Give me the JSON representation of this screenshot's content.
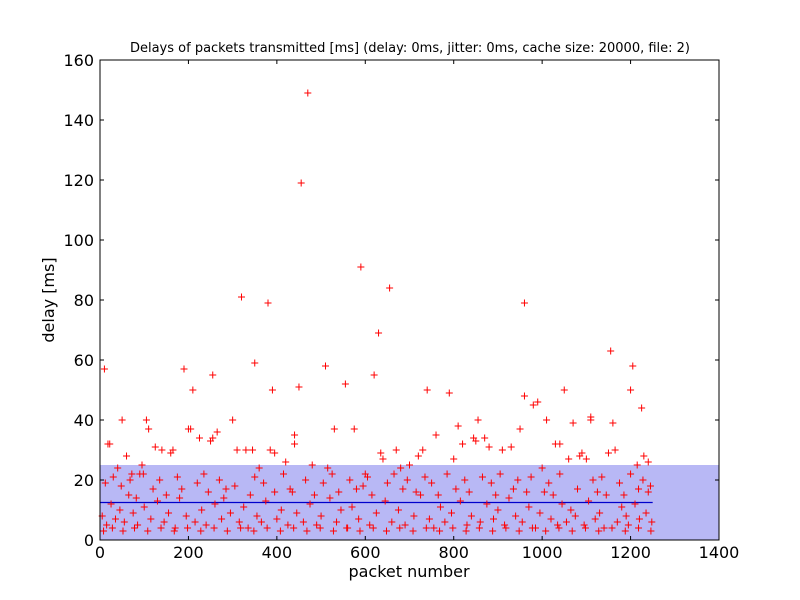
{
  "chart_data": {
    "type": "scatter",
    "title": "Delays of packets transmitted [ms] (delay: 0ms, jitter: 0ms, cache size: 20000, file: 2)",
    "xlabel": "packet number",
    "ylabel": "delay [ms]",
    "xlim": [
      0,
      1400
    ],
    "ylim": [
      0,
      160
    ],
    "xticks": [
      0,
      200,
      400,
      600,
      800,
      1000,
      1200,
      1400
    ],
    "yticks": [
      0,
      20,
      40,
      60,
      80,
      100,
      120,
      140,
      160
    ],
    "grid": false,
    "band": {
      "ymin": 0,
      "ymax": 25,
      "color": "#b8b8f5"
    },
    "mean_line": {
      "y": 12.5,
      "x": [
        0,
        1250
      ],
      "color": "#0000cc"
    },
    "series": [
      {
        "name": "delay",
        "marker": "+",
        "color": "#ff0000",
        "points": [
          [
            10,
            57
          ],
          [
            18,
            32
          ],
          [
            22,
            32
          ],
          [
            40,
            24
          ],
          [
            50,
            40
          ],
          [
            60,
            28
          ],
          [
            72,
            22
          ],
          [
            90,
            22
          ],
          [
            95,
            25
          ],
          [
            105,
            40
          ],
          [
            110,
            37
          ],
          [
            125,
            31
          ],
          [
            140,
            30
          ],
          [
            160,
            29
          ],
          [
            165,
            30
          ],
          [
            190,
            57
          ],
          [
            200,
            37
          ],
          [
            205,
            37
          ],
          [
            210,
            50
          ],
          [
            225,
            34
          ],
          [
            250,
            33
          ],
          [
            255,
            34
          ],
          [
            255,
            55
          ],
          [
            265,
            36
          ],
          [
            300,
            40
          ],
          [
            310,
            30
          ],
          [
            320,
            81
          ],
          [
            330,
            30
          ],
          [
            345,
            30
          ],
          [
            350,
            59
          ],
          [
            360,
            24
          ],
          [
            380,
            79
          ],
          [
            385,
            30
          ],
          [
            390,
            50
          ],
          [
            395,
            29
          ],
          [
            420,
            26
          ],
          [
            440,
            32
          ],
          [
            440,
            35
          ],
          [
            450,
            51
          ],
          [
            455,
            119
          ],
          [
            470,
            149
          ],
          [
            480,
            25
          ],
          [
            510,
            58
          ],
          [
            515,
            24
          ],
          [
            530,
            37
          ],
          [
            555,
            52
          ],
          [
            575,
            37
          ],
          [
            590,
            91
          ],
          [
            600,
            22
          ],
          [
            620,
            55
          ],
          [
            630,
            69
          ],
          [
            635,
            29
          ],
          [
            640,
            27
          ],
          [
            655,
            84
          ],
          [
            670,
            30
          ],
          [
            680,
            24
          ],
          [
            700,
            25
          ],
          [
            720,
            28
          ],
          [
            730,
            30
          ],
          [
            740,
            50
          ],
          [
            760,
            35
          ],
          [
            790,
            49
          ],
          [
            800,
            27
          ],
          [
            810,
            38
          ],
          [
            820,
            32
          ],
          [
            845,
            34
          ],
          [
            850,
            33
          ],
          [
            855,
            40
          ],
          [
            870,
            34
          ],
          [
            880,
            31
          ],
          [
            910,
            30
          ],
          [
            930,
            31
          ],
          [
            950,
            37
          ],
          [
            960,
            79
          ],
          [
            960,
            48
          ],
          [
            980,
            45
          ],
          [
            990,
            46
          ],
          [
            1000,
            24
          ],
          [
            1010,
            40
          ],
          [
            1030,
            32
          ],
          [
            1040,
            32
          ],
          [
            1050,
            50
          ],
          [
            1060,
            27
          ],
          [
            1070,
            39
          ],
          [
            1085,
            28
          ],
          [
            1090,
            29
          ],
          [
            1100,
            27
          ],
          [
            1110,
            41
          ],
          [
            1110,
            40
          ],
          [
            1150,
            29
          ],
          [
            1155,
            63
          ],
          [
            1160,
            39
          ],
          [
            1165,
            30
          ],
          [
            1200,
            50
          ],
          [
            1205,
            58
          ],
          [
            1215,
            25
          ],
          [
            1225,
            44
          ],
          [
            1230,
            28
          ],
          [
            1240,
            26
          ],
          [
            1245,
            18
          ],
          [
            5,
            8
          ],
          [
            15,
            5
          ],
          [
            25,
            12
          ],
          [
            35,
            7
          ],
          [
            45,
            10
          ],
          [
            55,
            6
          ],
          [
            65,
            15
          ],
          [
            75,
            9
          ],
          [
            85,
            5
          ],
          [
            100,
            11
          ],
          [
            115,
            7
          ],
          [
            130,
            13
          ],
          [
            145,
            6
          ],
          [
            155,
            9
          ],
          [
            170,
            4
          ],
          [
            180,
            14
          ],
          [
            195,
            8
          ],
          [
            215,
            6
          ],
          [
            230,
            10
          ],
          [
            240,
            5
          ],
          [
            260,
            12
          ],
          [
            275,
            7
          ],
          [
            285,
            17
          ],
          [
            295,
            9
          ],
          [
            315,
            6
          ],
          [
            325,
            11
          ],
          [
            335,
            4
          ],
          [
            340,
            15
          ],
          [
            355,
            8
          ],
          [
            365,
            6
          ],
          [
            375,
            13
          ],
          [
            400,
            7
          ],
          [
            410,
            10
          ],
          [
            425,
            5
          ],
          [
            435,
            16
          ],
          [
            445,
            9
          ],
          [
            460,
            6
          ],
          [
            475,
            12
          ],
          [
            490,
            5
          ],
          [
            500,
            8
          ],
          [
            520,
            14
          ],
          [
            535,
            6
          ],
          [
            545,
            10
          ],
          [
            560,
            4
          ],
          [
            570,
            11
          ],
          [
            585,
            7
          ],
          [
            595,
            18
          ],
          [
            610,
            5
          ],
          [
            625,
            9
          ],
          [
            645,
            13
          ],
          [
            660,
            6
          ],
          [
            675,
            10
          ],
          [
            690,
            5
          ],
          [
            710,
            8
          ],
          [
            725,
            15
          ],
          [
            745,
            7
          ],
          [
            755,
            4
          ],
          [
            770,
            11
          ],
          [
            780,
            6
          ],
          [
            795,
            9
          ],
          [
            815,
            13
          ],
          [
            830,
            5
          ],
          [
            840,
            8
          ],
          [
            860,
            6
          ],
          [
            875,
            12
          ],
          [
            890,
            7
          ],
          [
            900,
            10
          ],
          [
            915,
            5
          ],
          [
            925,
            14
          ],
          [
            940,
            8
          ],
          [
            955,
            6
          ],
          [
            970,
            11
          ],
          [
            985,
            4
          ],
          [
            995,
            9
          ],
          [
            1005,
            16
          ],
          [
            1020,
            7
          ],
          [
            1035,
            5
          ],
          [
            1045,
            12
          ],
          [
            1055,
            6
          ],
          [
            1065,
            10
          ],
          [
            1075,
            8
          ],
          [
            1095,
            5
          ],
          [
            1105,
            13
          ],
          [
            1120,
            7
          ],
          [
            1130,
            9
          ],
          [
            1140,
            4
          ],
          [
            1145,
            15
          ],
          [
            1170,
            6
          ],
          [
            1180,
            11
          ],
          [
            1190,
            8
          ],
          [
            1195,
            5
          ],
          [
            1210,
            12
          ],
          [
            1220,
            7
          ],
          [
            1235,
            9
          ],
          [
            1248,
            6
          ],
          [
            12,
            19
          ],
          [
            30,
            21
          ],
          [
            48,
            18
          ],
          [
            68,
            20
          ],
          [
            82,
            14
          ],
          [
            98,
            22
          ],
          [
            120,
            17
          ],
          [
            135,
            20
          ],
          [
            150,
            15
          ],
          [
            175,
            21
          ],
          [
            185,
            17
          ],
          [
            220,
            19
          ],
          [
            235,
            22
          ],
          [
            245,
            16
          ],
          [
            270,
            20
          ],
          [
            280,
            14
          ],
          [
            305,
            18
          ],
          [
            350,
            21
          ],
          [
            370,
            19
          ],
          [
            395,
            16
          ],
          [
            415,
            22
          ],
          [
            430,
            17
          ],
          [
            465,
            20
          ],
          [
            485,
            15
          ],
          [
            505,
            19
          ],
          [
            525,
            22
          ],
          [
            540,
            16
          ],
          [
            565,
            20
          ],
          [
            580,
            17
          ],
          [
            605,
            21
          ],
          [
            615,
            15
          ],
          [
            650,
            19
          ],
          [
            665,
            22
          ],
          [
            685,
            17
          ],
          [
            695,
            20
          ],
          [
            715,
            16
          ],
          [
            735,
            21
          ],
          [
            750,
            19
          ],
          [
            765,
            15
          ],
          [
            785,
            22
          ],
          [
            805,
            17
          ],
          [
            825,
            20
          ],
          [
            835,
            16
          ],
          [
            865,
            21
          ],
          [
            885,
            19
          ],
          [
            895,
            15
          ],
          [
            905,
            22
          ],
          [
            935,
            17
          ],
          [
            945,
            20
          ],
          [
            965,
            16
          ],
          [
            975,
            21
          ],
          [
            1015,
            19
          ],
          [
            1025,
            15
          ],
          [
            1040,
            22
          ],
          [
            1080,
            17
          ],
          [
            1115,
            20
          ],
          [
            1125,
            16
          ],
          [
            1135,
            21
          ],
          [
            1175,
            19
          ],
          [
            1185,
            15
          ],
          [
            1200,
            22
          ],
          [
            1218,
            17
          ],
          [
            1228,
            20
          ],
          [
            1240,
            16
          ],
          [
            8,
            3
          ],
          [
            28,
            4
          ],
          [
            52,
            3
          ],
          [
            78,
            4
          ],
          [
            108,
            3
          ],
          [
            138,
            4
          ],
          [
            168,
            3
          ],
          [
            198,
            4
          ],
          [
            228,
            3
          ],
          [
            258,
            4
          ],
          [
            288,
            3
          ],
          [
            318,
            4
          ],
          [
            348,
            3
          ],
          [
            378,
            4
          ],
          [
            408,
            3
          ],
          [
            438,
            4
          ],
          [
            468,
            3
          ],
          [
            498,
            4
          ],
          [
            528,
            3
          ],
          [
            558,
            4
          ],
          [
            588,
            3
          ],
          [
            618,
            4
          ],
          [
            648,
            3
          ],
          [
            678,
            4
          ],
          [
            708,
            3
          ],
          [
            738,
            4
          ],
          [
            768,
            3
          ],
          [
            798,
            4
          ],
          [
            828,
            3
          ],
          [
            858,
            4
          ],
          [
            888,
            3
          ],
          [
            918,
            4
          ],
          [
            948,
            3
          ],
          [
            978,
            4
          ],
          [
            1008,
            3
          ],
          [
            1038,
            4
          ],
          [
            1068,
            3
          ],
          [
            1098,
            4
          ],
          [
            1128,
            3
          ],
          [
            1158,
            4
          ],
          [
            1188,
            3
          ],
          [
            1218,
            4
          ],
          [
            1246,
            3
          ]
        ]
      }
    ]
  }
}
